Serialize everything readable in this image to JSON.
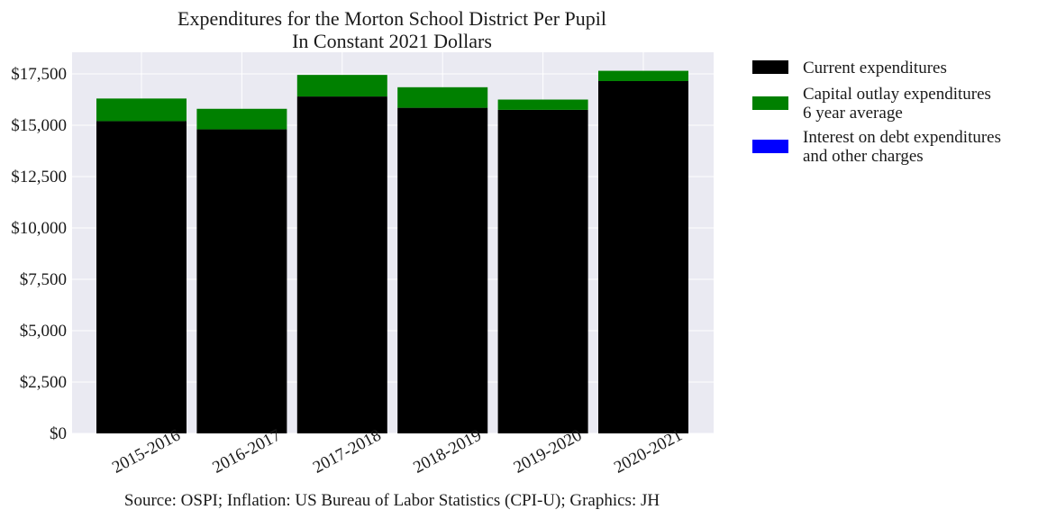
{
  "chart_data": {
    "type": "bar",
    "stacked": true,
    "title": [
      "Expenditures for the Morton School District Per Pupil",
      "In Constant 2021 Dollars"
    ],
    "categories": [
      "2015-2016",
      "2016-2017",
      "2017-2018",
      "2018-2019",
      "2019-2020",
      "2020-2021"
    ],
    "series": [
      {
        "name": "Current expenditures",
        "color": "#000000",
        "values": [
          15200,
          14800,
          16400,
          15850,
          15750,
          17150
        ]
      },
      {
        "name": "Capital outlay expenditures\n6 year average",
        "color": "#008000",
        "values": [
          1100,
          1000,
          1050,
          1000,
          500,
          500
        ]
      },
      {
        "name": "Interest on debt expenditures\nand other charges",
        "color": "#0000ff",
        "values": [
          0,
          0,
          0,
          0,
          0,
          0
        ]
      }
    ],
    "ylim": [
      0,
      17500
    ],
    "yticks": [
      0,
      2500,
      5000,
      7500,
      10000,
      12500,
      15000,
      17500
    ],
    "ytick_labels": [
      "$0",
      "$2,500",
      "$5,000",
      "$7,500",
      "$10,000",
      "$12,500",
      "$15,000",
      "$17,500"
    ],
    "grid": true,
    "legend_position": "outside-right",
    "source": "Source: OSPI; Inflation: US Bureau of Labor Statistics (CPI-U); Graphics: JH"
  }
}
